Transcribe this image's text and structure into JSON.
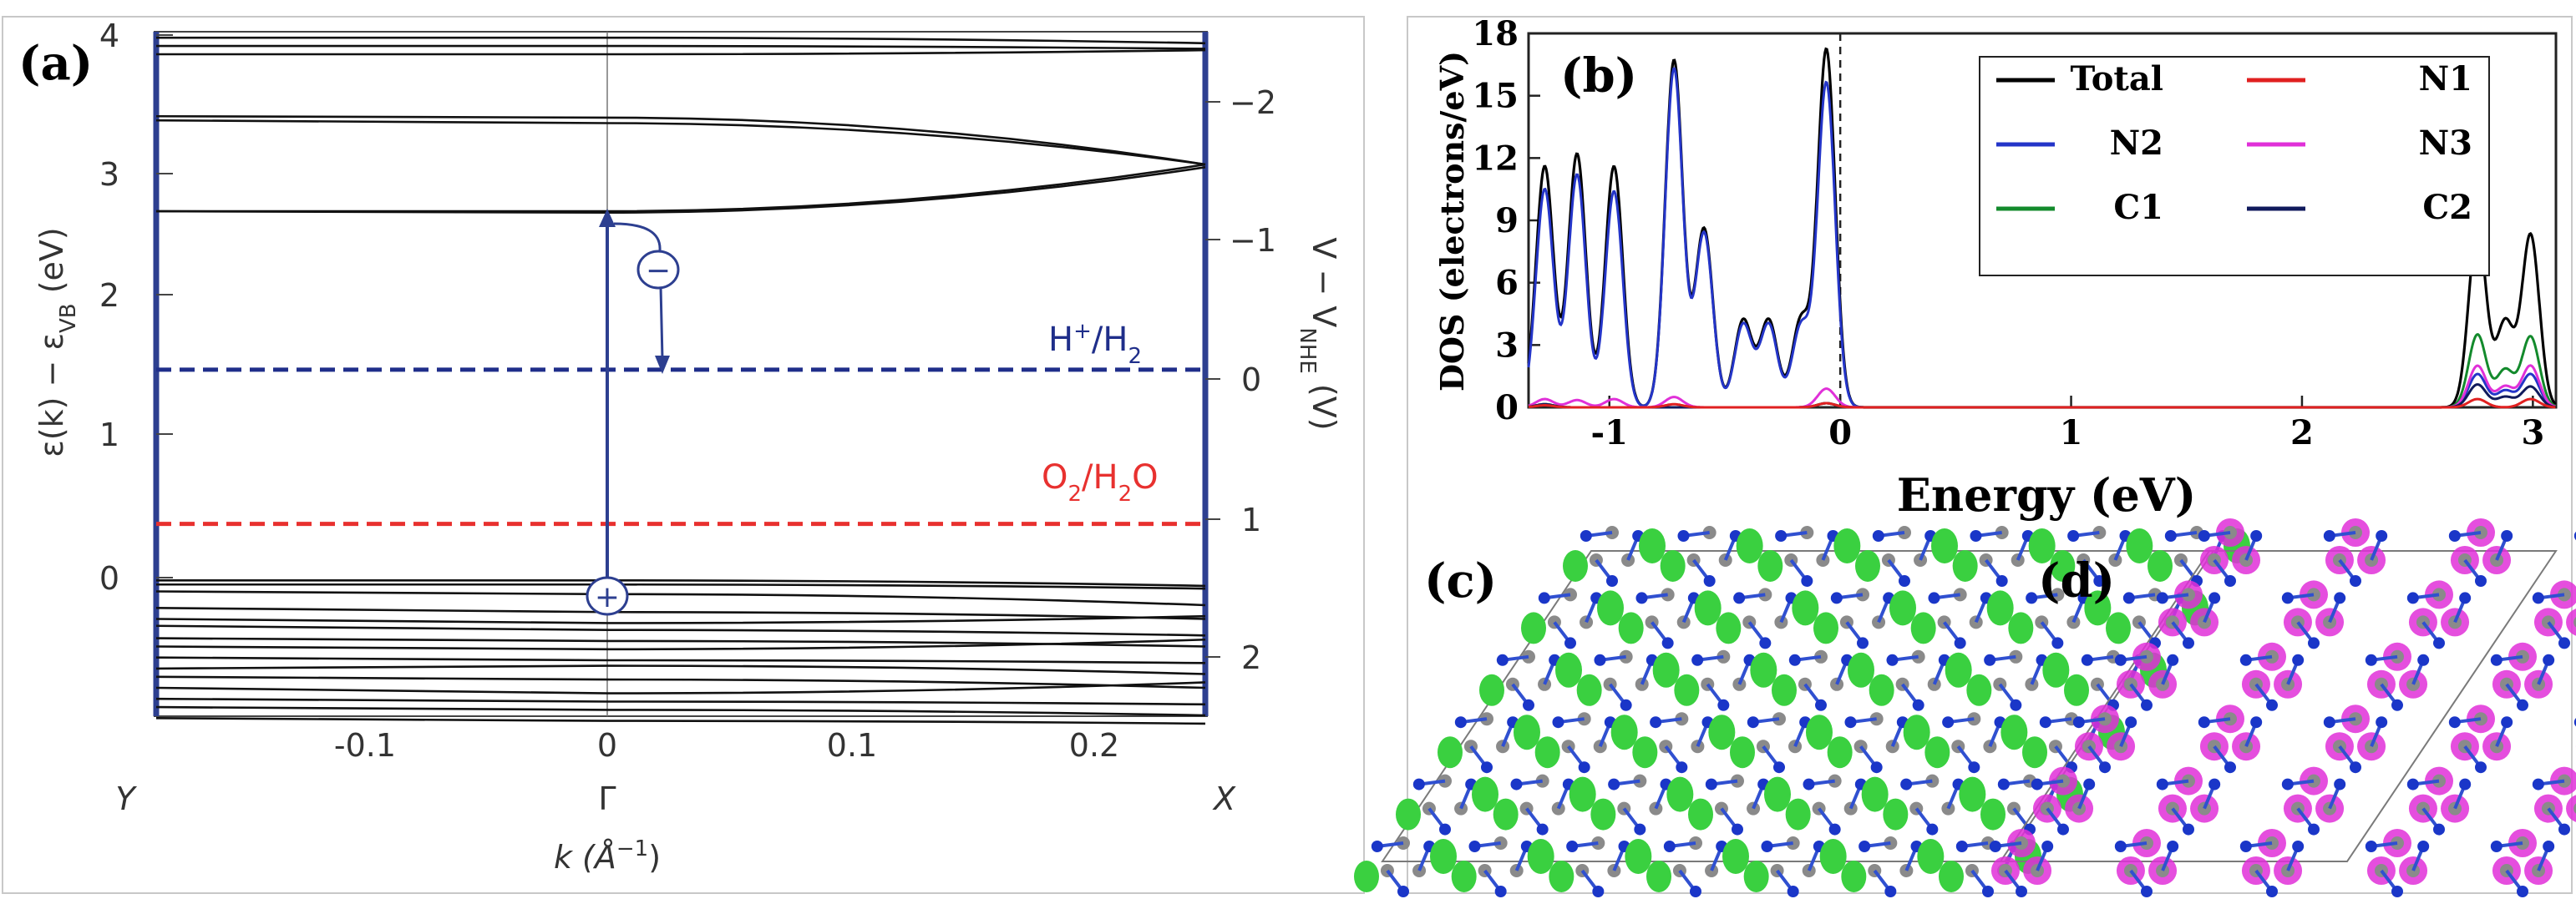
{
  "figure": {
    "panels": [
      {
        "label": "(a)",
        "x_label": "k (Å",
        "x_label_sup": "−1",
        "x_label_end": ")",
        "y_left_label": "ε(k) − ε",
        "y_left_label_sub": "VB",
        "y_left_label_end": " (eV)",
        "y_right_label": "V − V",
        "y_right_label_sub": "NHE",
        "y_right_label_end": " (V)",
        "y_left_ticks": [
          "0",
          "1",
          "2",
          "3",
          "4"
        ],
        "y_right_ticks": [
          "−2",
          "−1",
          "0",
          "1",
          "2"
        ],
        "x_ticks": [
          "-0.1",
          "0",
          "0.1",
          "0.2"
        ],
        "k_points": [
          "Y",
          "Γ",
          "X"
        ],
        "levels": [
          {
            "label": "H",
            "sup": "+",
            "rest": "/H",
            "sub": "2",
            "energy_ev": 1.51,
            "color": "#1f2e8a"
          },
          {
            "label": "O",
            "sub0": "2",
            "rest": "/H",
            "sub": "2",
            "tail": "O",
            "energy_ev": 0.39,
            "color": "#e8312f"
          }
        ],
        "carriers": {
          "electron": "−",
          "hole": "+"
        },
        "cbm_ev": 2.66,
        "vbm_ev": 0.0,
        "k_range": [
          -0.185,
          0.245
        ]
      },
      {
        "label": "(b)",
        "y_label": "DOS (electrons/eV)",
        "x_label": "Energy (eV)",
        "y_ticks": [
          "0",
          "3",
          "6",
          "9",
          "12",
          "15",
          "18"
        ],
        "x_ticks": [
          "-1",
          "0",
          "1",
          "2",
          "3"
        ]
      },
      {
        "label": "(c)"
      },
      {
        "label": "(d)"
      }
    ]
  },
  "chart_data": {
    "type": "line",
    "title": "",
    "xlabel": "Energy (eV)",
    "ylabel": "DOS (electrons/eV)",
    "xlim": [
      -1.35,
      3.1
    ],
    "ylim": [
      0,
      18
    ],
    "fermi_level": 0,
    "legend_position": "top-right",
    "series": [
      {
        "name": "Total",
        "color": "#000000",
        "peaks": [
          [
            -1.28,
            11.6
          ],
          [
            -1.14,
            12.2
          ],
          [
            -0.98,
            11.6
          ],
          [
            -0.72,
            16.7
          ],
          [
            -0.59,
            8.6
          ],
          [
            -0.42,
            4.2
          ],
          [
            -0.31,
            4.2
          ],
          [
            -0.17,
            4.2
          ],
          [
            -0.06,
            17.2
          ],
          [
            2.76,
            8.6
          ],
          [
            2.88,
            4.1
          ],
          [
            2.99,
            8.3
          ]
        ]
      },
      {
        "name": "N1",
        "color": "#e02020",
        "peaks": [
          [
            -1.28,
            0.1
          ],
          [
            -0.72,
            0.15
          ],
          [
            -0.06,
            0.2
          ],
          [
            2.76,
            0.4
          ],
          [
            2.99,
            0.4
          ]
        ]
      },
      {
        "name": "N2",
        "color": "#2435c8",
        "peaks": [
          [
            -1.28,
            10.5
          ],
          [
            -1.14,
            11.2
          ],
          [
            -0.98,
            10.4
          ],
          [
            -0.72,
            16.3
          ],
          [
            -0.59,
            8.4
          ],
          [
            -0.42,
            4.0
          ],
          [
            -0.31,
            4.0
          ],
          [
            -0.17,
            3.9
          ],
          [
            -0.06,
            15.6
          ],
          [
            2.76,
            1.6
          ],
          [
            2.88,
            0.8
          ],
          [
            2.99,
            1.6
          ]
        ]
      },
      {
        "name": "N3",
        "color": "#e030d8",
        "peaks": [
          [
            -1.28,
            0.4
          ],
          [
            -1.14,
            0.35
          ],
          [
            -0.98,
            0.4
          ],
          [
            -0.72,
            0.5
          ],
          [
            -0.06,
            0.9
          ],
          [
            2.76,
            2.0
          ],
          [
            2.88,
            1.0
          ],
          [
            2.99,
            2.0
          ]
        ]
      },
      {
        "name": "C1",
        "color": "#138a2c",
        "peaks": [
          [
            -1.28,
            0.15
          ],
          [
            -0.06,
            0.2
          ],
          [
            2.76,
            3.5
          ],
          [
            2.88,
            1.8
          ],
          [
            2.99,
            3.4
          ]
        ]
      },
      {
        "name": "C2",
        "color": "#101a5c",
        "peaks": [
          [
            -1.28,
            0.15
          ],
          [
            -0.06,
            0.2
          ],
          [
            2.76,
            1.1
          ],
          [
            2.88,
            0.5
          ],
          [
            2.99,
            1.0
          ]
        ]
      }
    ]
  }
}
